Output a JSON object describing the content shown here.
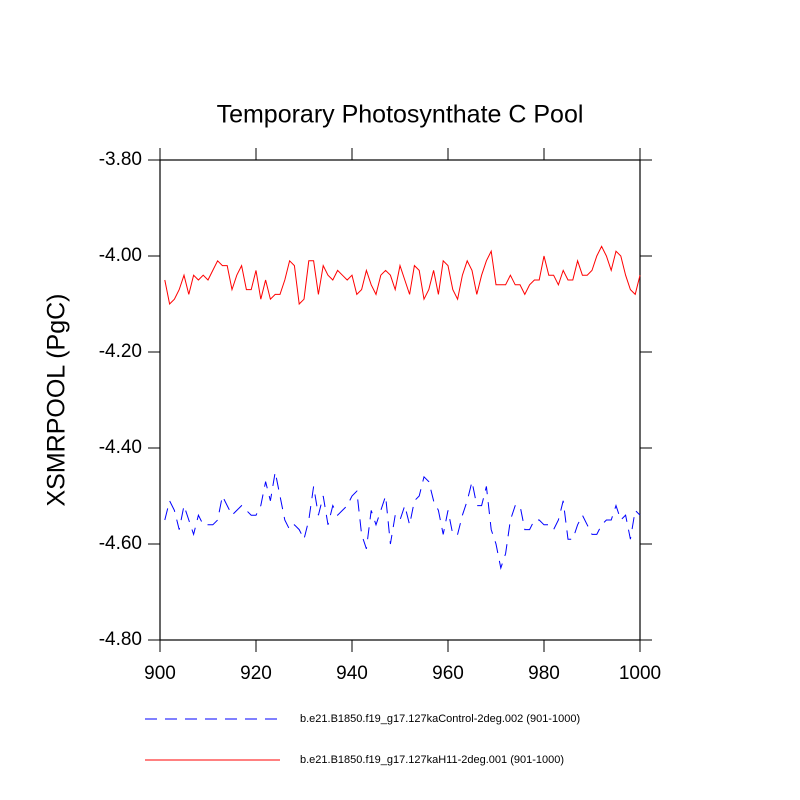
{
  "chart_data": {
    "type": "line",
    "title": "Temporary Photosynthate C Pool",
    "y_label": "XSMRPOOL  (PgC)",
    "x": [
      901,
      902,
      903,
      904,
      905,
      906,
      907,
      908,
      909,
      910,
      911,
      912,
      913,
      914,
      915,
      916,
      917,
      918,
      919,
      920,
      921,
      922,
      923,
      924,
      925,
      926,
      927,
      928,
      929,
      930,
      931,
      932,
      933,
      934,
      935,
      936,
      937,
      938,
      939,
      940,
      941,
      942,
      943,
      944,
      945,
      946,
      947,
      948,
      949,
      950,
      951,
      952,
      953,
      954,
      955,
      956,
      957,
      958,
      959,
      960,
      961,
      962,
      963,
      964,
      965,
      966,
      967,
      968,
      969,
      970,
      971,
      972,
      973,
      974,
      975,
      976,
      977,
      978,
      979,
      980,
      981,
      982,
      983,
      984,
      985,
      986,
      987,
      988,
      989,
      990,
      991,
      992,
      993,
      994,
      995,
      996,
      997,
      998,
      999,
      1000
    ],
    "series": [
      {
        "name": "b.e21.B1850.f19_g17.127kaControl-2deg.002 (901-1000)",
        "color": "#0000ff",
        "dash": true,
        "values": [
          -4.55,
          -4.51,
          -4.53,
          -4.57,
          -4.52,
          -4.55,
          -4.58,
          -4.54,
          -4.56,
          -4.56,
          -4.56,
          -4.55,
          -4.5,
          -4.52,
          -4.54,
          -4.53,
          -4.52,
          -4.53,
          -4.54,
          -4.54,
          -4.52,
          -4.47,
          -4.51,
          -4.45,
          -4.5,
          -4.55,
          -4.57,
          -4.56,
          -4.57,
          -4.59,
          -4.55,
          -4.48,
          -4.54,
          -4.5,
          -4.56,
          -4.52,
          -4.54,
          -4.53,
          -4.52,
          -4.5,
          -4.49,
          -4.58,
          -4.61,
          -4.53,
          -4.56,
          -4.53,
          -4.5,
          -4.6,
          -4.54,
          -4.55,
          -4.52,
          -4.56,
          -4.51,
          -4.5,
          -4.46,
          -4.47,
          -4.51,
          -4.53,
          -4.58,
          -4.53,
          -4.58,
          -4.58,
          -4.54,
          -4.51,
          -4.47,
          -4.52,
          -4.52,
          -4.48,
          -4.57,
          -4.6,
          -4.65,
          -4.62,
          -4.55,
          -4.52,
          -4.52,
          -4.57,
          -4.57,
          -4.55,
          -4.55,
          -4.56,
          -4.56,
          -4.57,
          -4.55,
          -4.51,
          -4.59,
          -4.59,
          -4.56,
          -4.54,
          -4.56,
          -4.58,
          -4.58,
          -4.56,
          -4.55,
          -4.55,
          -4.52,
          -4.55,
          -4.54,
          -4.59,
          -4.53,
          -4.54
        ]
      },
      {
        "name": "b.e21.B1850.f19_g17.127kaH11-2deg.001 (901-1000)",
        "color": "#ff0000",
        "dash": false,
        "values": [
          -4.05,
          -4.1,
          -4.09,
          -4.07,
          -4.04,
          -4.08,
          -4.04,
          -4.05,
          -4.04,
          -4.05,
          -4.03,
          -4.01,
          -4.02,
          -4.02,
          -4.07,
          -4.04,
          -4.02,
          -4.07,
          -4.07,
          -4.03,
          -4.09,
          -4.05,
          -4.09,
          -4.08,
          -4.08,
          -4.05,
          -4.01,
          -4.02,
          -4.1,
          -4.09,
          -4.01,
          -4.01,
          -4.08,
          -4.02,
          -4.04,
          -4.05,
          -4.03,
          -4.04,
          -4.05,
          -4.04,
          -4.08,
          -4.07,
          -4.03,
          -4.06,
          -4.08,
          -4.04,
          -4.03,
          -4.04,
          -4.07,
          -4.02,
          -4.05,
          -4.08,
          -4.02,
          -4.03,
          -4.09,
          -4.07,
          -4.03,
          -4.08,
          -4.01,
          -4.02,
          -4.07,
          -4.09,
          -4.04,
          -4.01,
          -4.03,
          -4.08,
          -4.04,
          -4.01,
          -3.99,
          -4.06,
          -4.06,
          -4.06,
          -4.04,
          -4.06,
          -4.06,
          -4.08,
          -4.06,
          -4.05,
          -4.05,
          -4.0,
          -4.04,
          -4.04,
          -4.06,
          -4.03,
          -4.05,
          -4.05,
          -4.01,
          -4.04,
          -4.04,
          -4.03,
          -4.0,
          -3.98,
          -4.0,
          -4.03,
          -3.99,
          -4.0,
          -4.04,
          -4.07,
          -4.08,
          -4.04
        ]
      }
    ],
    "xlim": [
      900,
      1000
    ],
    "xticks": [
      900,
      920,
      940,
      960,
      980,
      1000
    ],
    "ylim": [
      -4.8,
      -3.8
    ],
    "yticks": [
      {
        "value": -4.8,
        "label": "-4.80"
      },
      {
        "value": -4.6,
        "label": "-4.60"
      },
      {
        "value": -4.4,
        "label": "-4.40"
      },
      {
        "value": -4.2,
        "label": "-4.20"
      },
      {
        "value": -4.0,
        "label": "-4.00"
      },
      {
        "value": -3.8,
        "label": "-3.80"
      }
    ],
    "grid": false
  }
}
